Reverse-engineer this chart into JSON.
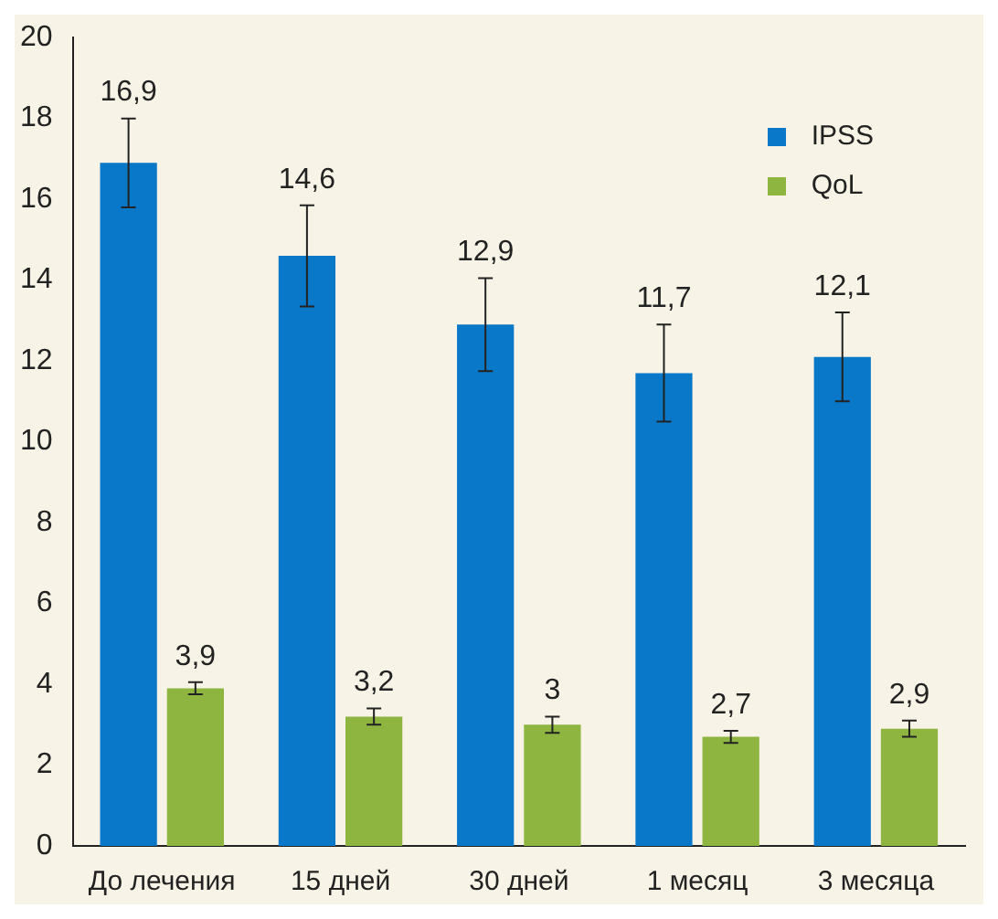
{
  "chart_data": {
    "type": "bar",
    "categories": [
      "До лечения",
      "15 дней",
      "30 дней",
      "1 месяц",
      "3 месяца"
    ],
    "series": [
      {
        "name": "IPSS",
        "color": "#0a78c8",
        "values": [
          16.9,
          14.6,
          12.9,
          11.7,
          12.1
        ],
        "value_labels": [
          "16,9",
          "14,6",
          "12,9",
          "11,7",
          "12,1"
        ],
        "errors": [
          1.1,
          1.25,
          1.15,
          1.2,
          1.1
        ]
      },
      {
        "name": "QoL",
        "color": "#8db540",
        "values": [
          3.9,
          3.2,
          3,
          2.7,
          2.9
        ],
        "value_labels": [
          "3,9",
          "3,2",
          "3",
          "2,7",
          "2,9"
        ],
        "errors": [
          0.15,
          0.2,
          0.2,
          0.15,
          0.2
        ]
      }
    ],
    "ylim": [
      0,
      20
    ],
    "yticks": [
      0,
      2,
      4,
      6,
      8,
      10,
      12,
      14,
      16,
      18,
      20
    ],
    "grid": false,
    "legend": "top right"
  }
}
